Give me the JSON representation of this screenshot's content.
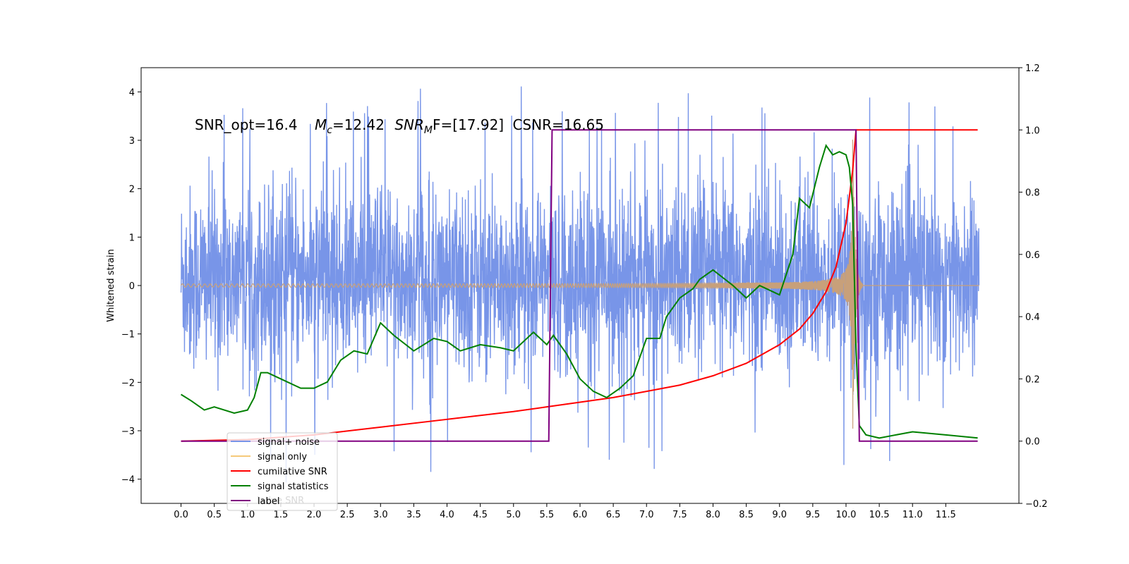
{
  "chart_data": {
    "type": "line",
    "title": "",
    "annotation": {
      "snr_opt": "SNR_opt=16.4",
      "mc_label": "M",
      "mc_sub": "c",
      "mc_value": "=12.42",
      "snrmf_label": "SNR",
      "snrmf_sub": "M",
      "snrmf_value": "F=[17.92]",
      "csnr": "CSNR=16.65"
    },
    "xlabel": "",
    "ylabel": "Whitened strain",
    "xlim": [
      -0.6,
      12.6
    ],
    "ylim_left": [
      -4.5,
      4.5
    ],
    "ylim_right": [
      -0.2,
      1.2
    ],
    "x_ticks": [
      "0.0",
      "0.5",
      "1.0",
      "1.5",
      "2.0",
      "2.5",
      "3.0",
      "3.5",
      "4.0",
      "4.5",
      "5.0",
      "5.5",
      "6.0",
      "6.5",
      "7.0",
      "7.5",
      "8.0",
      "8.5",
      "9.0",
      "9.5",
      "10.0",
      "10.5",
      "11.0",
      "11.5"
    ],
    "x_tick_values": [
      0,
      0.5,
      1,
      1.5,
      2,
      2.5,
      3,
      3.5,
      4,
      4.5,
      5,
      5.5,
      6,
      6.5,
      7,
      7.5,
      8,
      8.5,
      9,
      9.5,
      10,
      10.5,
      11,
      11.5
    ],
    "y_ticks_left": [
      -4,
      -3,
      -2,
      -1,
      0,
      1,
      2,
      3,
      4
    ],
    "y_ticks_right": [
      "−0.2",
      "0.0",
      "0.2",
      "0.4",
      "0.6",
      "0.8",
      "1.0",
      "1.2"
    ],
    "y_tick_values_right": [
      -0.2,
      0,
      0.2,
      0.4,
      0.6,
      0.8,
      1.0,
      1.2
    ],
    "noise": {
      "x_start": 0,
      "x_end": 12,
      "typical_range": [
        -2.2,
        2.5
      ],
      "max": 4.1,
      "min": -4.05
    },
    "signal": {
      "x_start": 0,
      "merger_x": 10.1,
      "end_x": 10.25,
      "amplitude_start": 0.03,
      "amplitude_peak": 3.3
    },
    "series": [
      {
        "name": "cumulative SNR",
        "axis": "right",
        "x": [
          0,
          1,
          2,
          3,
          4,
          5,
          5.5,
          6,
          6.5,
          7,
          7.5,
          8,
          8.5,
          9,
          9.3,
          9.5,
          9.7,
          9.85,
          10,
          10.1,
          10.15,
          11.98
        ],
        "y": [
          0,
          0.005,
          0.02,
          0.045,
          0.07,
          0.095,
          0.11,
          0.125,
          0.14,
          0.16,
          0.18,
          0.21,
          0.25,
          0.31,
          0.36,
          0.41,
          0.48,
          0.56,
          0.7,
          0.87,
          1.0,
          1.0
        ]
      },
      {
        "name": "signal statistics",
        "axis": "right",
        "x": [
          0,
          0.15,
          0.35,
          0.5,
          0.8,
          1.0,
          1.1,
          1.2,
          1.3,
          1.5,
          1.8,
          2.0,
          2.2,
          2.4,
          2.6,
          2.8,
          3.0,
          3.2,
          3.5,
          3.8,
          4.0,
          4.2,
          4.5,
          4.8,
          5.0,
          5.3,
          5.5,
          5.6,
          5.8,
          6.0,
          6.2,
          6.4,
          6.6,
          6.8,
          7.0,
          7.2,
          7.3,
          7.5,
          7.7,
          7.8,
          8.0,
          8.3,
          8.5,
          8.7,
          8.9,
          9.0,
          9.2,
          9.3,
          9.45,
          9.6,
          9.7,
          9.8,
          9.9,
          10.0,
          10.05,
          10.1,
          10.15,
          10.2,
          10.3,
          10.5,
          11.0,
          11.5,
          11.98
        ],
        "y": [
          0.15,
          0.13,
          0.1,
          0.11,
          0.09,
          0.1,
          0.14,
          0.22,
          0.22,
          0.2,
          0.17,
          0.17,
          0.19,
          0.26,
          0.29,
          0.28,
          0.38,
          0.34,
          0.29,
          0.33,
          0.32,
          0.29,
          0.31,
          0.3,
          0.29,
          0.35,
          0.31,
          0.34,
          0.28,
          0.2,
          0.16,
          0.14,
          0.17,
          0.21,
          0.33,
          0.33,
          0.4,
          0.46,
          0.49,
          0.52,
          0.55,
          0.5,
          0.46,
          0.5,
          0.48,
          0.47,
          0.6,
          0.78,
          0.75,
          0.88,
          0.95,
          0.92,
          0.93,
          0.92,
          0.88,
          0.76,
          0.3,
          0.05,
          0.02,
          0.01,
          0.03,
          0.02,
          0.01
        ]
      },
      {
        "name": "label",
        "axis": "right",
        "x": [
          0,
          5.53,
          5.58,
          10.15,
          10.2,
          11.98
        ],
        "y": [
          0,
          0,
          1,
          1,
          0,
          0
        ]
      }
    ],
    "legend": {
      "placement": "lower-left",
      "entries": [
        "signal+ noise",
        "signal only",
        "cumilative SNR",
        "signal statistics",
        "label"
      ],
      "ghost_text": "lative SNR"
    },
    "colors": {
      "noise": "#7895e8",
      "signal": "#c8a07a",
      "signal_legend": "#f5c97a",
      "cumulative": "#ff0000",
      "statistics": "#008000",
      "label": "#800080"
    }
  }
}
